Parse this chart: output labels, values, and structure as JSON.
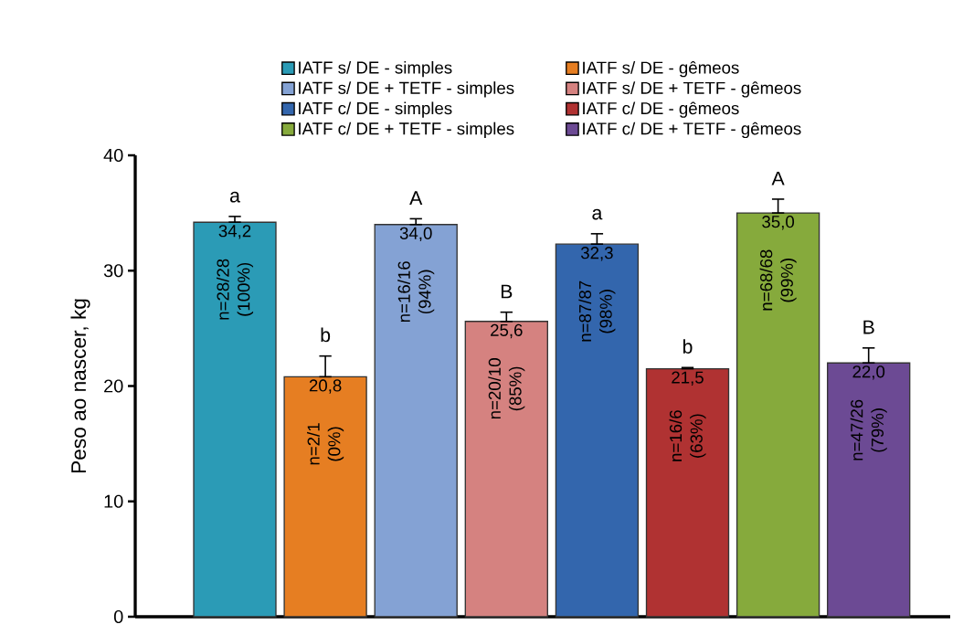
{
  "chart_data": {
    "type": "bar",
    "ylabel": "Peso ao nascer, kg",
    "categories": [
      null,
      null,
      null,
      null,
      null,
      null,
      null,
      null
    ],
    "series": [
      {
        "name": "IATF s/ DE - simples",
        "color": "#2b9bb6",
        "values": [
          34.2,
          null,
          null,
          null,
          null,
          null,
          null,
          null
        ],
        "errors": [
          [
            34.2,
            34.7
          ],
          null,
          null,
          null,
          null,
          null,
          null,
          null
        ],
        "value_labels": [
          "34,2",
          null,
          null,
          null,
          null,
          null,
          null,
          null
        ]
      },
      {
        "name": "IATF s/ DE - gêmeos",
        "color": "#e67e22",
        "values": [
          null,
          20.8,
          null,
          null,
          null,
          null,
          null,
          null
        ],
        "errors": [
          null,
          [
            20.8,
            22.6
          ],
          null,
          null,
          null,
          null,
          null,
          null
        ],
        "value_labels": [
          null,
          "20,8",
          null,
          null,
          null,
          null,
          null,
          null
        ]
      },
      {
        "name": "IATF s/ DE + TETF - simples",
        "color": "#84a2d4",
        "values": [
          null,
          null,
          34.0,
          null,
          null,
          null,
          null,
          null
        ],
        "errors": [
          null,
          null,
          [
            34.0,
            34.5
          ],
          null,
          null,
          null,
          null,
          null
        ],
        "value_labels": [
          null,
          null,
          "34,0",
          null,
          null,
          null,
          null,
          null
        ]
      },
      {
        "name": "IATF s/ DE + TETF - gêmeos",
        "color": "#d58280",
        "values": [
          null,
          null,
          null,
          25.6,
          null,
          null,
          null,
          null
        ],
        "errors": [
          null,
          null,
          null,
          [
            25.6,
            26.4
          ],
          null,
          null,
          null,
          null
        ],
        "value_labels": [
          null,
          null,
          null,
          "25,6",
          null,
          null,
          null,
          null
        ]
      },
      {
        "name": "IATF c/ DE - simples",
        "color": "#3366ad",
        "values": [
          null,
          null,
          null,
          null,
          32.3,
          null,
          null,
          null
        ],
        "errors": [
          null,
          null,
          null,
          null,
          [
            32.3,
            33.2
          ],
          null,
          null,
          null
        ],
        "value_labels": [
          null,
          null,
          null,
          null,
          "32,3",
          null,
          null,
          null
        ]
      },
      {
        "name": "IATF c/ DE - gêmeos",
        "color": "#b03232",
        "values": [
          null,
          null,
          null,
          null,
          null,
          21.5,
          null,
          null
        ],
        "errors": [
          null,
          null,
          null,
          null,
          null,
          [
            21.5,
            21.6
          ],
          null,
          null
        ],
        "value_labels": [
          null,
          null,
          null,
          null,
          null,
          "21,5",
          null,
          null
        ]
      },
      {
        "name": "IATF c/ DE + TETF - simples",
        "color": "#86aa3c",
        "values": [
          null,
          null,
          null,
          null,
          null,
          null,
          35.0,
          null
        ],
        "errors": [
          null,
          null,
          null,
          null,
          null,
          null,
          [
            35.0,
            36.2
          ],
          null
        ],
        "value_labels": [
          null,
          null,
          null,
          null,
          null,
          null,
          "35,0",
          null
        ]
      },
      {
        "name": "IATF c/ DE + TETF - gêmeos",
        "color": "#6c4a94",
        "values": [
          null,
          null,
          null,
          null,
          null,
          null,
          null,
          22.0
        ],
        "errors": [
          null,
          null,
          null,
          null,
          null,
          null,
          null,
          [
            22.0,
            23.3
          ]
        ],
        "value_labels": [
          null,
          null,
          null,
          null,
          null,
          null,
          null,
          "22,0"
        ]
      }
    ],
    "annotations": [
      "a",
      "b",
      "A",
      "B",
      "a",
      "b",
      "A",
      "B",
      "n=28/28 (100%)",
      "n=2/1 (0%)",
      "n=16/16 (94%)",
      "n=20/10 (85%)",
      "n=87/87 (98%)",
      "n=16/6 (63%)",
      "n=68/68 (99%)",
      "n=47/26 (79%)"
    ],
    "ylim": [
      0,
      40
    ],
    "yticks": [
      0,
      10,
      20,
      30,
      40
    ],
    "grid": false,
    "legend": "top"
  }
}
